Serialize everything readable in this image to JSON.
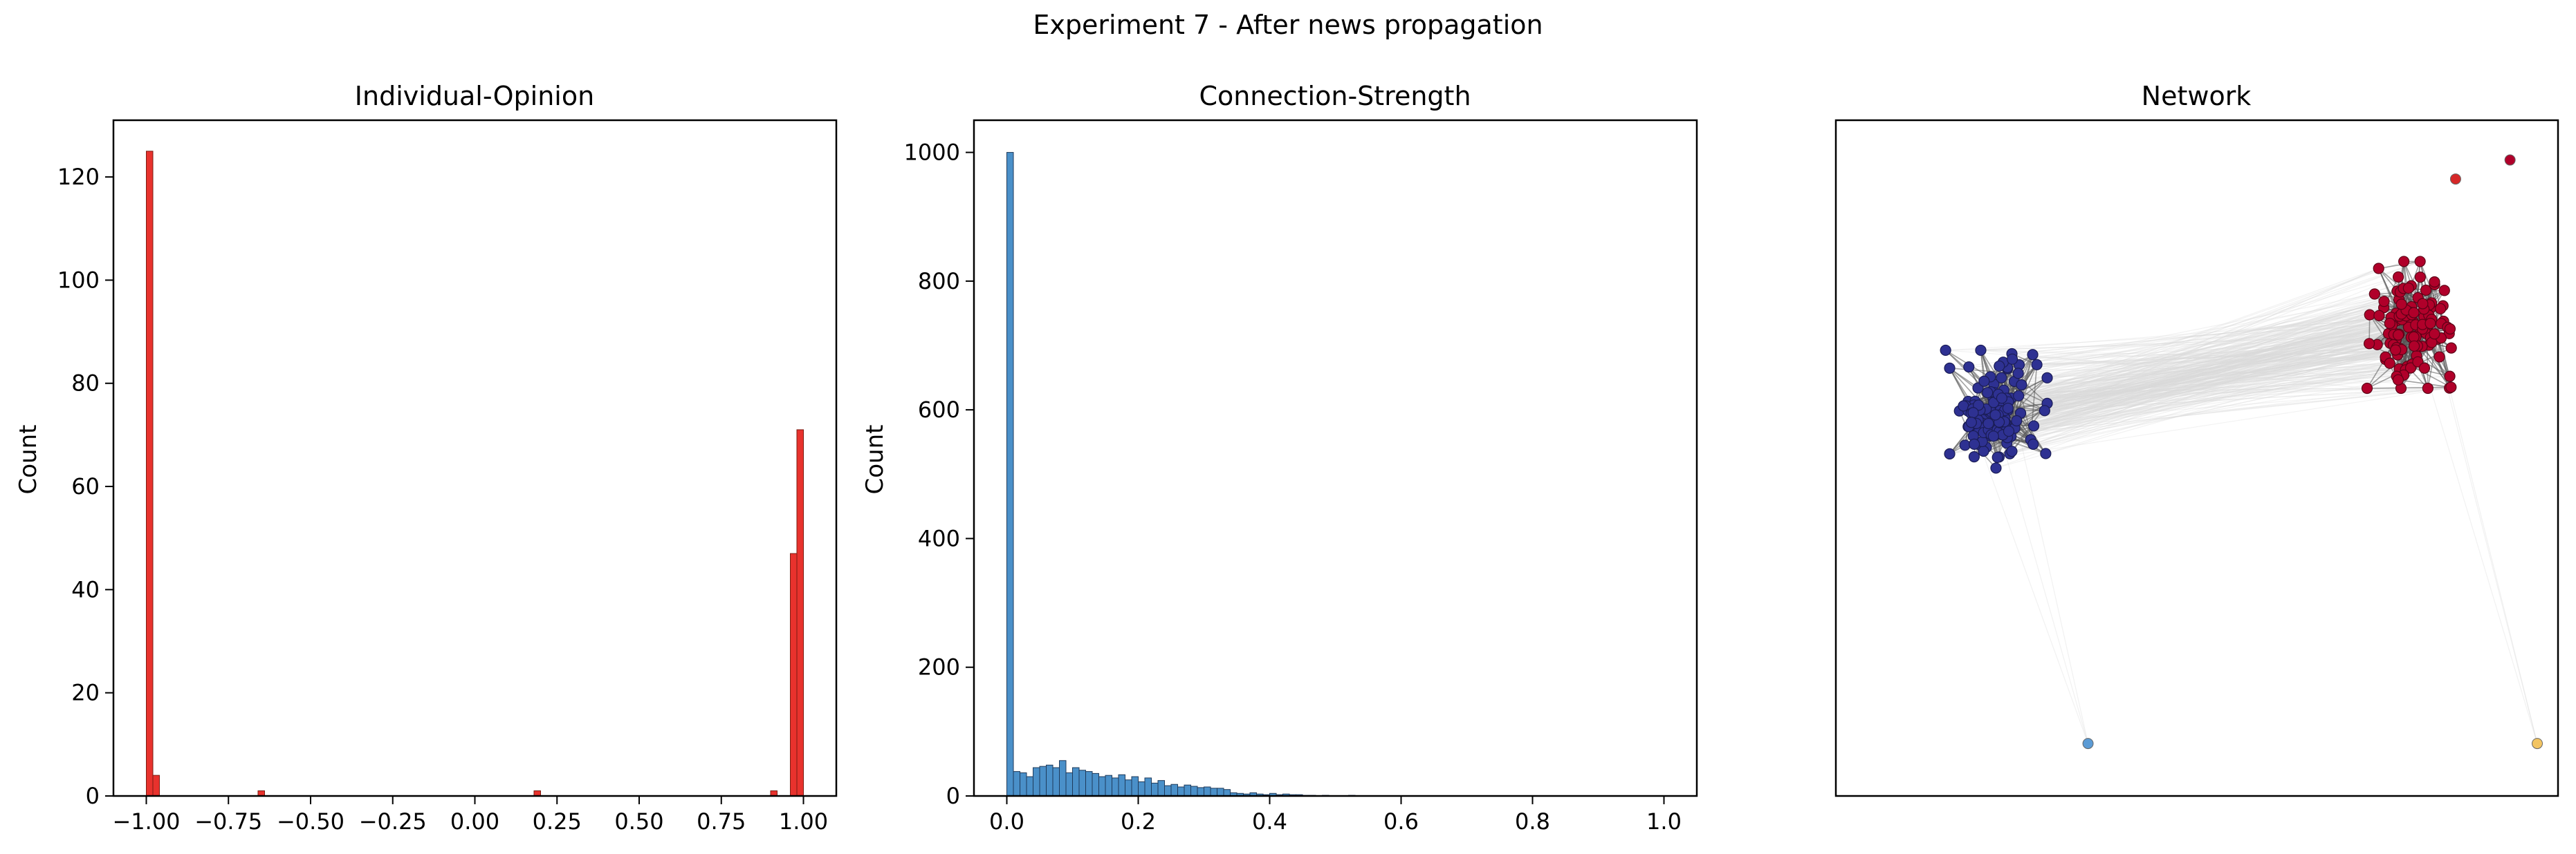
{
  "figure_title": "Experiment 7 - After news propagation",
  "chart_data": [
    {
      "type": "bar",
      "title": "Individual-Opinion",
      "xlabel": "",
      "ylabel": "Count",
      "xlim": [
        -1.1,
        1.1
      ],
      "ylim": [
        0,
        131
      ],
      "xticks": [
        -1.0,
        -0.75,
        -0.5,
        -0.25,
        0.0,
        0.25,
        0.5,
        0.75,
        1.0
      ],
      "xtick_labels": [
        "−1.00",
        "−0.75",
        "−0.50",
        "−0.25",
        "0.00",
        "0.25",
        "0.50",
        "0.75",
        "1.00"
      ],
      "yticks": [
        0,
        20,
        40,
        60,
        80,
        100,
        120
      ],
      "bin_width": 0.02,
      "bins": [
        {
          "x": -1.0,
          "count": 125
        },
        {
          "x": -0.98,
          "count": 4
        },
        {
          "x": -0.66,
          "count": 1
        },
        {
          "x": 0.18,
          "count": 1
        },
        {
          "x": 0.9,
          "count": 1
        },
        {
          "x": 0.96,
          "count": 47
        },
        {
          "x": 0.98,
          "count": 71
        }
      ],
      "color": "#e8322d",
      "edge_color": "#7a1c12"
    },
    {
      "type": "bar",
      "title": "Connection-Strength",
      "xlabel": "",
      "ylabel": "Count",
      "xlim": [
        -0.05,
        1.05
      ],
      "ylim": [
        0,
        1050
      ],
      "xticks": [
        0.0,
        0.2,
        0.4,
        0.6,
        0.8,
        1.0
      ],
      "xtick_labels": [
        "0.0",
        "0.2",
        "0.4",
        "0.6",
        "0.8",
        "1.0"
      ],
      "yticks": [
        0,
        200,
        400,
        600,
        800,
        1000
      ],
      "bin_width": 0.01,
      "bin_start": 0.0,
      "counts": [
        1000,
        38,
        36,
        30,
        44,
        46,
        48,
        44,
        55,
        36,
        44,
        40,
        38,
        35,
        30,
        32,
        28,
        33,
        25,
        30,
        22,
        28,
        20,
        24,
        16,
        18,
        14,
        17,
        15,
        13,
        14,
        12,
        12,
        10,
        5,
        4,
        3,
        5,
        3,
        2,
        4,
        2,
        3,
        2,
        2,
        1,
        1,
        0,
        1,
        0,
        0,
        0,
        1
      ],
      "color": "#4a90c9",
      "edge_color": "#1f3a5a"
    },
    {
      "type": "scatter",
      "title": "Network",
      "xlabel": "",
      "ylabel": "",
      "description_free": true,
      "axes_visible": false,
      "clusters": [
        {
          "color": "#2e3192",
          "edge_color": "#1a1c55",
          "center": [
            0.2,
            0.57
          ],
          "spread": [
            0.16,
            0.2
          ],
          "nodes": 125
        },
        {
          "color": "#b0002a",
          "edge_color": "#5c0016",
          "center": [
            0.82,
            0.71
          ],
          "spread": [
            0.14,
            0.2
          ],
          "nodes": 118
        }
      ],
      "outliers": [
        {
          "color": "#5b9bd5",
          "x": 0.34,
          "y": 0.05
        },
        {
          "color": "#f2c462",
          "x": 1.0,
          "y": 0.05
        },
        {
          "color": "#d62728",
          "x": 0.88,
          "y": 0.94
        },
        {
          "color": "#b0002a",
          "x": 0.96,
          "y": 0.97
        }
      ]
    }
  ]
}
